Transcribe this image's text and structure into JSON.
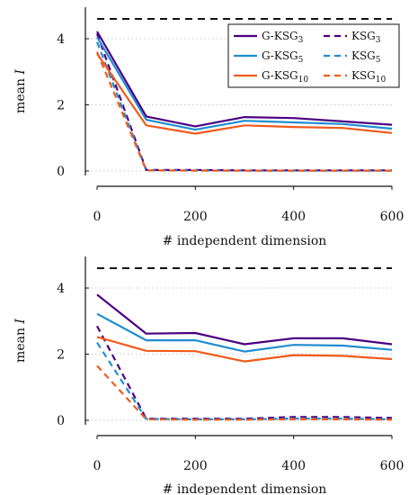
{
  "colors": {
    "purple": "#4b0082",
    "blue": "#1f8dd0",
    "orange": "#f05a1a",
    "reference": "#111111",
    "grid": "#c8c8c8"
  },
  "chart_data": [
    {
      "type": "line",
      "xlabel": "# independent dimension",
      "ylabel": "mean I",
      "xlim": [
        0,
        600
      ],
      "ylim": [
        0,
        4.6
      ],
      "xticks": [
        0,
        200,
        400,
        600
      ],
      "yticks": [
        0,
        2,
        4
      ],
      "grid": "horizontal dotted",
      "legend_position": "top-right",
      "reference_line": 4.6,
      "x": [
        0,
        100,
        200,
        300,
        400,
        500,
        600
      ],
      "series": [
        {
          "name": "G-KSG₃",
          "base": "G-KSG",
          "sub": "3",
          "style": "solid",
          "color": "purple",
          "values": [
            4.22,
            1.65,
            1.35,
            1.63,
            1.6,
            1.5,
            1.4
          ]
        },
        {
          "name": "KSG₃",
          "base": "KSG",
          "sub": "3",
          "style": "dashed",
          "color": "purple",
          "values": [
            4.15,
            0.03,
            0.03,
            0.02,
            0.02,
            0.02,
            0.02
          ]
        },
        {
          "name": "G-KSG₅",
          "base": "G-KSG",
          "sub": "5",
          "style": "solid",
          "color": "blue",
          "values": [
            4.05,
            1.55,
            1.25,
            1.52,
            1.47,
            1.42,
            1.28
          ]
        },
        {
          "name": "KSG₅",
          "base": "KSG",
          "sub": "5",
          "style": "dashed",
          "color": "blue",
          "values": [
            3.9,
            0.02,
            0.02,
            0.01,
            0.01,
            0.01,
            0.01
          ]
        },
        {
          "name": "G-KSG₁₀",
          "base": "G-KSG",
          "sub": "10",
          "style": "solid",
          "color": "orange",
          "values": [
            3.55,
            1.38,
            1.13,
            1.38,
            1.33,
            1.3,
            1.15
          ]
        },
        {
          "name": "KSG₁₀",
          "base": "KSG",
          "sub": "10",
          "style": "dashed",
          "color": "orange",
          "values": [
            3.6,
            0.02,
            0.01,
            0.01,
            0.01,
            0.01,
            0.01
          ]
        }
      ]
    },
    {
      "type": "line",
      "xlabel": "# independent dimension",
      "ylabel": "mean I",
      "xlim": [
        0,
        600
      ],
      "ylim": [
        0,
        4.6
      ],
      "xticks": [
        0,
        200,
        400,
        600
      ],
      "yticks": [
        0,
        2,
        4
      ],
      "grid": "horizontal dotted",
      "reference_line": 4.6,
      "x": [
        0,
        100,
        200,
        300,
        400,
        500,
        600
      ],
      "series": [
        {
          "style": "solid",
          "color": "purple",
          "values": [
            3.8,
            2.62,
            2.64,
            2.3,
            2.48,
            2.48,
            2.3
          ]
        },
        {
          "style": "dashed",
          "color": "purple",
          "values": [
            2.85,
            0.05,
            0.05,
            0.05,
            0.1,
            0.1,
            0.07
          ]
        },
        {
          "style": "solid",
          "color": "blue",
          "values": [
            3.22,
            2.42,
            2.42,
            2.08,
            2.28,
            2.26,
            2.13
          ]
        },
        {
          "style": "dashed",
          "color": "blue",
          "values": [
            2.35,
            0.04,
            0.03,
            0.03,
            0.05,
            0.05,
            0.03
          ]
        },
        {
          "style": "solid",
          "color": "orange",
          "values": [
            2.52,
            2.1,
            2.09,
            1.78,
            1.97,
            1.95,
            1.85
          ]
        },
        {
          "style": "dashed",
          "color": "orange",
          "values": [
            1.65,
            0.03,
            0.02,
            0.02,
            0.03,
            0.03,
            0.02
          ]
        }
      ]
    }
  ]
}
